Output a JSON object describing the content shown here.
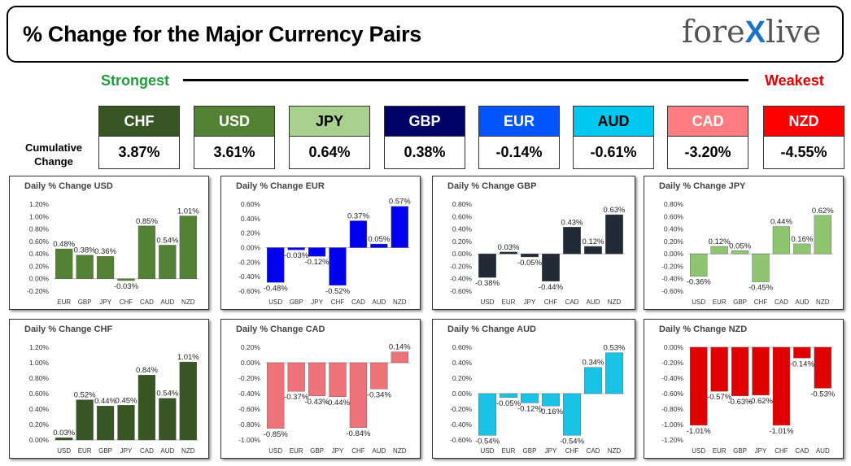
{
  "header": {
    "title": "% Change for the Major Currency Pairs",
    "logo_left": "fore",
    "logo_x": "X",
    "logo_right": "live"
  },
  "scale": {
    "strongest": "Strongest",
    "weakest": "Weakest"
  },
  "cumulative": {
    "label_line1": "Cumulative",
    "label_line2": "Change",
    "currencies": [
      {
        "code": "CHF",
        "value": "3.87%",
        "bg": "#375623",
        "fg": "#ffffff"
      },
      {
        "code": "USD",
        "value": "3.61%",
        "bg": "#548235",
        "fg": "#ffffff"
      },
      {
        "code": "JPY",
        "value": "0.64%",
        "bg": "#a9d08e",
        "fg": "#000000"
      },
      {
        "code": "GBP",
        "value": "0.38%",
        "bg": "#000066",
        "fg": "#ffffff"
      },
      {
        "code": "EUR",
        "value": "-0.14%",
        "bg": "#0055ff",
        "fg": "#ffffff"
      },
      {
        "code": "AUD",
        "value": "-0.61%",
        "bg": "#00c8f0",
        "fg": "#000000"
      },
      {
        "code": "CAD",
        "value": "-3.20%",
        "bg": "#ff7c80",
        "fg": "#ffffff"
      },
      {
        "code": "NZD",
        "value": "-4.55%",
        "bg": "#ff0000",
        "fg": "#ffffff"
      }
    ]
  },
  "chart_data": [
    {
      "type": "bar",
      "title": "Daily % Change USD",
      "categories": [
        "EUR",
        "GBP",
        "JPY",
        "CHF",
        "CAD",
        "AUD",
        "NZD"
      ],
      "values": [
        0.48,
        0.38,
        0.36,
        -0.03,
        0.85,
        0.54,
        1.01
      ],
      "labels": [
        "0.48%",
        "0.38%",
        "0.36%",
        "-0.03%",
        "0.85%",
        "0.54%",
        "1.01%"
      ],
      "ylim": [
        -0.2,
        1.2
      ],
      "yticks": [
        "-0.20%",
        "0.00%",
        "0.20%",
        "0.40%",
        "0.60%",
        "0.80%",
        "1.00%",
        "1.20%"
      ],
      "ytick_values": [
        -0.2,
        0,
        0.2,
        0.4,
        0.6,
        0.8,
        1.0,
        1.2
      ],
      "color": "#548235"
    },
    {
      "type": "bar",
      "title": "Daily % Change EUR",
      "categories": [
        "USD",
        "GBP",
        "JPY",
        "CHF",
        "CAD",
        "AUD",
        "NZD"
      ],
      "values": [
        -0.48,
        -0.03,
        -0.12,
        -0.52,
        0.37,
        0.05,
        0.57
      ],
      "labels": [
        "-0.48%",
        "-0.03%",
        "-0.12%",
        "-0.52%",
        "0.37%",
        "0.05%",
        "0.57%"
      ],
      "ylim": [
        -0.6,
        0.6
      ],
      "yticks": [
        "-0.60%",
        "-0.40%",
        "-0.20%",
        "0.00%",
        "0.20%",
        "0.40%",
        "0.60%"
      ],
      "ytick_values": [
        -0.6,
        -0.4,
        -0.2,
        0,
        0.2,
        0.4,
        0.6
      ],
      "color": "#0000ee"
    },
    {
      "type": "bar",
      "title": "Daily % Change GBP",
      "categories": [
        "USD",
        "EUR",
        "JPY",
        "CHF",
        "CAD",
        "AUD",
        "NZD"
      ],
      "values": [
        -0.38,
        0.03,
        -0.05,
        -0.44,
        0.43,
        0.12,
        0.63
      ],
      "labels": [
        "-0.38%",
        "0.03%",
        "-0.05%",
        "-0.44%",
        "0.43%",
        "0.12%",
        "0.63%"
      ],
      "ylim": [
        -0.6,
        0.8
      ],
      "yticks": [
        "-0.60%",
        "-0.40%",
        "-0.20%",
        "0.00%",
        "0.20%",
        "0.40%",
        "0.60%",
        "0.80%"
      ],
      "ytick_values": [
        -0.6,
        -0.4,
        -0.2,
        0,
        0.2,
        0.4,
        0.6,
        0.8
      ],
      "color": "#222a35"
    },
    {
      "type": "bar",
      "title": "Daily % Change JPY",
      "categories": [
        "USD",
        "EUR",
        "GBP",
        "CHF",
        "CAD",
        "AUD",
        "NZD"
      ],
      "values": [
        -0.36,
        0.12,
        0.05,
        -0.45,
        0.44,
        0.16,
        0.62
      ],
      "labels": [
        "-0.36%",
        "0.12%",
        "0.05%",
        "-0.45%",
        "0.44%",
        "0.16%",
        "0.62%"
      ],
      "ylim": [
        -0.6,
        0.8
      ],
      "yticks": [
        "-0.60%",
        "-0.40%",
        "-0.20%",
        "0.00%",
        "0.20%",
        "0.40%",
        "0.60%",
        "0.80%"
      ],
      "ytick_values": [
        -0.6,
        -0.4,
        -0.2,
        0,
        0.2,
        0.4,
        0.6,
        0.8
      ],
      "color": "#8fc471"
    },
    {
      "type": "bar",
      "title": "Daily % Change CHF",
      "categories": [
        "USD",
        "EUR",
        "GBP",
        "JPY",
        "CAD",
        "AUD",
        "NZD"
      ],
      "values": [
        0.03,
        0.52,
        0.44,
        0.45,
        0.84,
        0.54,
        1.01
      ],
      "labels": [
        "0.03%",
        "0.52%",
        "0.44%",
        "0.45%",
        "0.84%",
        "0.54%",
        "1.01%"
      ],
      "ylim": [
        0,
        1.2
      ],
      "yticks": [
        "0.00%",
        "0.20%",
        "0.40%",
        "0.60%",
        "0.80%",
        "1.00%",
        "1.20%"
      ],
      "ytick_values": [
        0,
        0.2,
        0.4,
        0.6,
        0.8,
        1.0,
        1.2
      ],
      "color": "#375623"
    },
    {
      "type": "bar",
      "title": "Daily % Change CAD",
      "categories": [
        "USD",
        "EUR",
        "GBP",
        "JPY",
        "CHF",
        "AUD",
        "NZD"
      ],
      "values": [
        -0.85,
        -0.37,
        -0.43,
        -0.44,
        -0.84,
        -0.34,
        0.14
      ],
      "labels": [
        "-0.85%",
        "-0.37%",
        "-0.43%",
        "-0.44%",
        "-0.84%",
        "-0.34%",
        "0.14%"
      ],
      "ylim": [
        -1.0,
        0.2
      ],
      "yticks": [
        "-1.00%",
        "-0.80%",
        "-0.60%",
        "-0.40%",
        "-0.20%",
        "0.00%",
        "0.20%"
      ],
      "ytick_values": [
        -1.0,
        -0.8,
        -0.6,
        -0.4,
        -0.2,
        0,
        0.2
      ],
      "color": "#ee7378"
    },
    {
      "type": "bar",
      "title": "Daily % Change AUD",
      "categories": [
        "USD",
        "EUR",
        "GBP",
        "JPY",
        "CHF",
        "CAD",
        "NZD"
      ],
      "values": [
        -0.54,
        -0.05,
        -0.12,
        -0.16,
        -0.54,
        0.34,
        0.53
      ],
      "labels": [
        "-0.54%",
        "-0.05%",
        "-0.12%",
        "-0.16%",
        "-0.54%",
        "0.34%",
        "0.53%"
      ],
      "ylim": [
        -0.6,
        0.6
      ],
      "yticks": [
        "-0.60%",
        "-0.40%",
        "-0.20%",
        "0.00%",
        "0.20%",
        "0.40%",
        "0.60%"
      ],
      "ytick_values": [
        -0.6,
        -0.4,
        -0.2,
        0,
        0.2,
        0.4,
        0.6
      ],
      "color": "#19c3e6"
    },
    {
      "type": "bar",
      "title": "Daily % Change NZD",
      "categories": [
        "USD",
        "EUR",
        "GBP",
        "JPY",
        "CHF",
        "CAD",
        "AUD"
      ],
      "values": [
        -1.01,
        -0.57,
        -0.63,
        -0.62,
        -1.01,
        -0.14,
        -0.53
      ],
      "labels": [
        "-1.01%",
        "-0.57%",
        "-0.63%",
        "-0.62%",
        "-1.01%",
        "-0.14%",
        "-0.53%"
      ],
      "ylim": [
        -1.2,
        0
      ],
      "yticks": [
        "-1.20%",
        "-1.00%",
        "-0.80%",
        "-0.60%",
        "-0.40%",
        "-0.20%",
        "0.00%"
      ],
      "ytick_values": [
        -1.2,
        -1.0,
        -0.8,
        -0.6,
        -0.4,
        -0.2,
        0
      ],
      "color": "#e00000"
    }
  ]
}
